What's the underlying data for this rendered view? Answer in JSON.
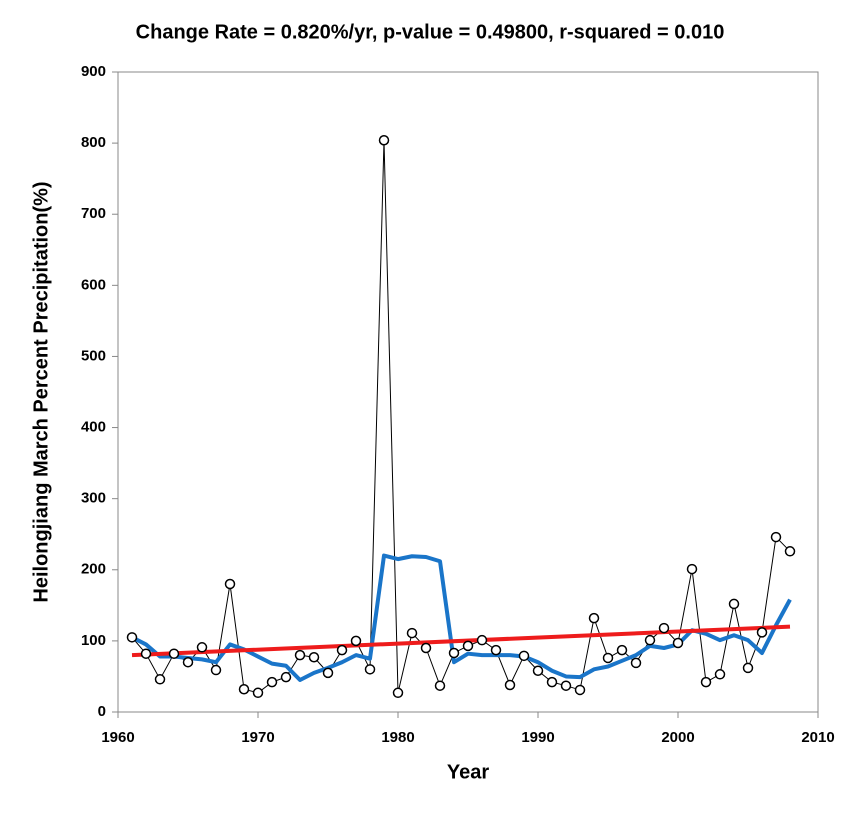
{
  "chart_data": {
    "type": "line",
    "title": "Change Rate =  0.820%/yr,  p-value =  0.49800,  r-squared =  0.010",
    "xlabel": "Year",
    "ylabel": "Heilongjiang March Percent Precipitation(%)",
    "xlim": [
      1960,
      2010
    ],
    "xticks": [
      1960,
      1970,
      1980,
      1990,
      2000,
      2010
    ],
    "ylim": [
      0,
      900
    ],
    "yticks": [
      0,
      100,
      200,
      300,
      400,
      500,
      600,
      700,
      800,
      900
    ],
    "grid": false,
    "x": [
      1961,
      1962,
      1963,
      1964,
      1965,
      1966,
      1967,
      1968,
      1969,
      1970,
      1971,
      1972,
      1973,
      1974,
      1975,
      1976,
      1977,
      1978,
      1979,
      1980,
      1981,
      1982,
      1983,
      1984,
      1985,
      1986,
      1987,
      1988,
      1989,
      1990,
      1991,
      1992,
      1993,
      1994,
      1995,
      1996,
      1997,
      1998,
      1999,
      2000,
      2001,
      2002,
      2003,
      2004,
      2005,
      2006,
      2007,
      2008
    ],
    "series": [
      {
        "color": "#000000",
        "markers": true,
        "width": 1,
        "values": [
          105,
          82,
          46,
          82,
          70,
          91,
          59,
          180,
          32,
          27,
          42,
          49,
          80,
          77,
          55,
          87,
          100,
          60,
          804,
          27,
          111,
          90,
          37,
          83,
          93,
          101,
          87,
          38,
          79,
          58,
          42,
          37,
          31,
          132,
          76,
          87,
          69,
          101,
          118,
          97,
          201,
          42,
          53,
          152,
          62,
          112,
          246,
          226
        ]
      },
      {
        "color": "#1a75c9",
        "markers": false,
        "width": 4,
        "values": [
          105,
          95,
          78,
          78,
          76,
          74,
          70,
          95,
          88,
          78,
          68,
          65,
          45,
          55,
          62,
          70,
          80,
          75,
          220,
          215,
          219,
          218,
          212,
          70,
          82,
          80,
          80,
          80,
          78,
          70,
          58,
          50,
          49,
          60,
          64,
          72,
          80,
          93,
          90,
          95,
          115,
          110,
          101,
          108,
          101,
          83,
          122,
          158
        ]
      },
      {
        "color": "#ee1c1c",
        "markers": false,
        "width": 4,
        "x": [
          1961,
          2008
        ],
        "values": [
          80,
          120
        ]
      }
    ]
  }
}
